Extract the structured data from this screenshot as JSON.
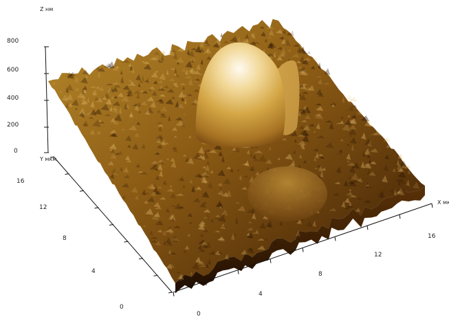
{
  "chart_data": {
    "type": "surface-3d",
    "title": "",
    "z_axis": {
      "label": "Z нм",
      "ticks": [
        "800",
        "600",
        "400",
        "200",
        "0"
      ]
    },
    "y_axis": {
      "label": "Y мкм",
      "ticks": [
        "16",
        "12",
        "8",
        "4",
        "0"
      ]
    },
    "x_axis": {
      "label": "X мкм",
      "ticks": [
        "0",
        "4",
        "8",
        "12",
        "16"
      ]
    },
    "features": [
      {
        "name": "large dome",
        "x_um": 9.5,
        "y_um": 12.5,
        "height_nm": 780
      },
      {
        "name": "small mound",
        "x_um": 8.5,
        "y_um": 5.5,
        "height_nm": 230
      }
    ],
    "colormap": [
      "#2a1402",
      "#6b3d0b",
      "#a8761c",
      "#d9ac46",
      "#fff6dd"
    ]
  }
}
